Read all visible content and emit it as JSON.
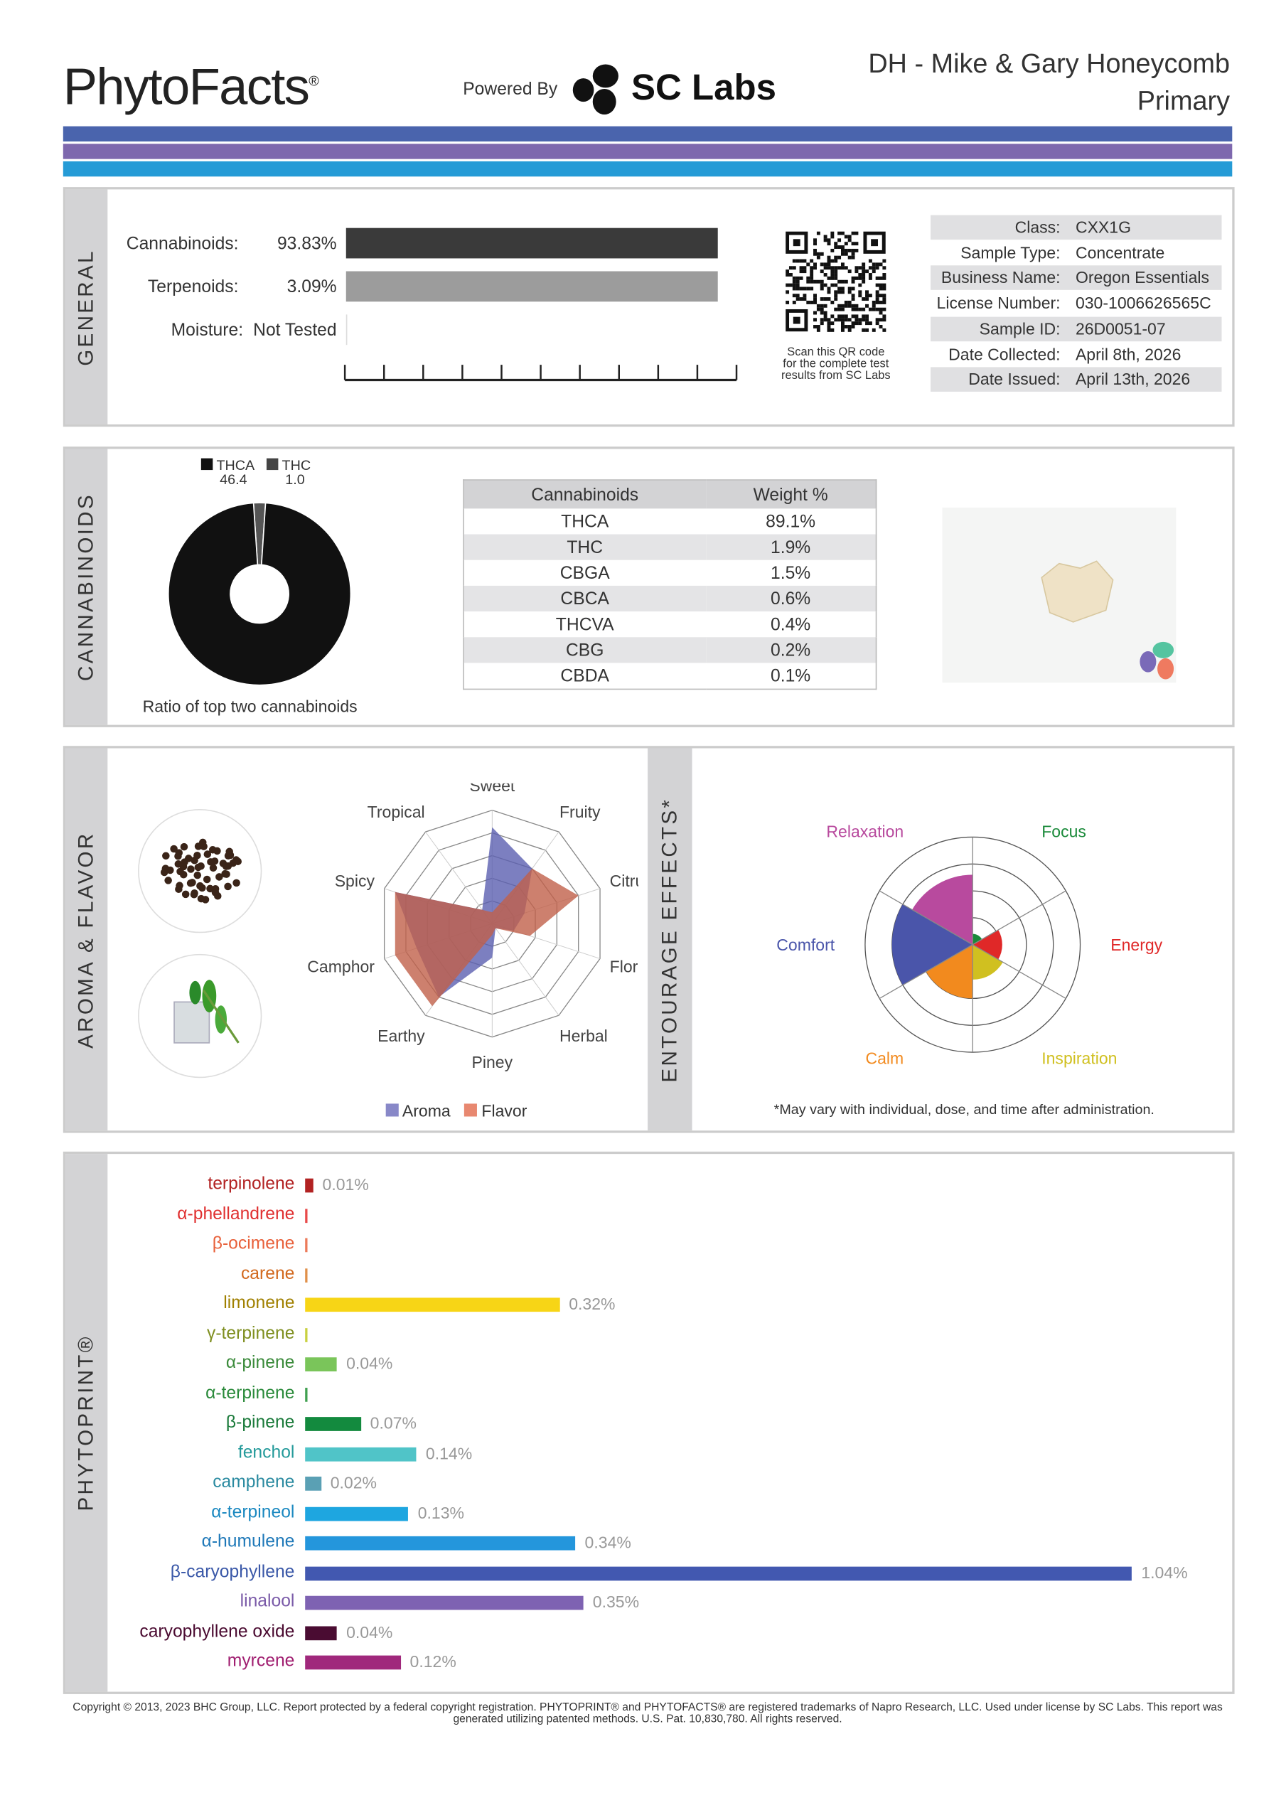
{
  "header": {
    "logo": "PhytoFacts",
    "powered_by": "Powered By",
    "lab_logo": "SC Labs",
    "title_line1": "DH - Mike & Gary Honeycomb",
    "title_line2": "Primary"
  },
  "bands": [
    "#4a64ad",
    "#7e68ae",
    "#259bd6"
  ],
  "general": {
    "section": "GENERAL",
    "cannabinoids_label": "Cannabinoids:",
    "cannabinoids_value": "93.83%",
    "cannabinoids_fraction": 0.9383,
    "terpenoids_label": "Terpenoids:",
    "terpenoids_value": "3.09%",
    "moisture_label": "Moisture:",
    "moisture_value": "Not Tested",
    "qr_caption": [
      "Scan this QR code",
      "for the complete test",
      "results from SC Labs"
    ],
    "info": [
      {
        "k": "Class:",
        "v": "CXX1G"
      },
      {
        "k": "Sample Type:",
        "v": "Concentrate"
      },
      {
        "k": "Business Name:",
        "v": "Oregon Essentials"
      },
      {
        "k": "License Number:",
        "v": "030-1006626565C"
      },
      {
        "k": "Sample ID:",
        "v": "26D0051-07"
      },
      {
        "k": "Date Collected:",
        "v": "April 8th, 2026"
      },
      {
        "k": "Date Issued:",
        "v": "April 13th, 2026"
      }
    ]
  },
  "cannabinoids": {
    "section": "CANNABINOIDS",
    "donut": {
      "caption": "Ratio of top two cannabinoids",
      "legend": [
        {
          "name": "THCA",
          "value": "46.4",
          "color": "#111111"
        },
        {
          "name": "THC",
          "value": "1.0",
          "color": "#444444"
        }
      ]
    },
    "table": {
      "headers": [
        "Cannabinoids",
        "Weight %"
      ],
      "rows": [
        [
          "THCA",
          "89.1%"
        ],
        [
          "THC",
          "1.9%"
        ],
        [
          "CBGA",
          "1.5%"
        ],
        [
          "CBCA",
          "0.6%"
        ],
        [
          "THCVA",
          "0.4%"
        ],
        [
          "CBG",
          "0.2%"
        ],
        [
          "CBDA",
          "0.1%"
        ]
      ]
    }
  },
  "aroma": {
    "section": "AROMA & FLAVOR",
    "axes": [
      "Sweet",
      "Fruity",
      "Citrusy",
      "Floral",
      "Herbal",
      "Piney",
      "Earthy",
      "Camphor",
      "Spicy",
      "Tropical"
    ],
    "series": [
      {
        "name": "Aroma",
        "color": "#5b5fb0",
        "values": [
          0.85,
          0.6,
          0.3,
          0.2,
          0.05,
          0.3,
          0.8,
          0.7,
          0.9,
          0.15
        ]
      },
      {
        "name": "Flavor",
        "color": "#c0604a",
        "values": [
          0.1,
          0.6,
          0.8,
          0.35,
          0.05,
          0.1,
          0.9,
          0.9,
          0.9,
          0.15
        ]
      }
    ]
  },
  "entourage": {
    "section": "ENTOURAGE EFFECTS*",
    "note": "*May vary with individual, dose, and time after administration.",
    "effects": [
      {
        "name": "Focus",
        "color": "#1a8a3a",
        "value": 0.4
      },
      {
        "name": "Energy",
        "color": "#e02828",
        "value": 1.1
      },
      {
        "name": "Inspiration",
        "color": "#d0c020",
        "value": 1.3
      },
      {
        "name": "Calm",
        "color": "#f28a1e",
        "value": 2.0
      },
      {
        "name": "Comfort",
        "color": "#4a55aa",
        "value": 3.0
      },
      {
        "name": "Relaxation",
        "color": "#b84a9e",
        "value": 2.6
      }
    ]
  },
  "phytoprint": {
    "section": "PHYTOPRINT®",
    "terpenes": [
      {
        "name": "terpinolene",
        "value": "0.01%",
        "pct": 0.01,
        "color": "#b22222",
        "bar": "#b22222"
      },
      {
        "name": "α-phellandrene",
        "value": "",
        "pct": 0.002,
        "color": "#e03030",
        "bar": "#e84a4a"
      },
      {
        "name": "β-ocimene",
        "value": "",
        "pct": 0.002,
        "color": "#e8603a",
        "bar": "#ec7a5a"
      },
      {
        "name": "carene",
        "value": "",
        "pct": 0.002,
        "color": "#d2691e",
        "bar": "#e0904a"
      },
      {
        "name": "limonene",
        "value": "0.32%",
        "pct": 0.32,
        "color": "#a08000",
        "bar": "#f7d516"
      },
      {
        "name": "γ-terpinene",
        "value": "",
        "pct": 0.002,
        "color": "#7f8f20",
        "bar": "#c8d040"
      },
      {
        "name": "α-pinene",
        "value": "0.04%",
        "pct": 0.04,
        "color": "#3a8a3a",
        "bar": "#7ac55a"
      },
      {
        "name": "α-terpinene",
        "value": "",
        "pct": 0.002,
        "color": "#2a8a3a",
        "bar": "#40a050"
      },
      {
        "name": "β-pinene",
        "value": "0.07%",
        "pct": 0.07,
        "color": "#1a7a3a",
        "bar": "#138a3e"
      },
      {
        "name": "fenchol",
        "value": "0.14%",
        "pct": 0.14,
        "color": "#239a9a",
        "bar": "#50c4c8"
      },
      {
        "name": "camphene",
        "value": "0.02%",
        "pct": 0.02,
        "color": "#2a8aa0",
        "bar": "#5aa0b4"
      },
      {
        "name": "α-terpineol",
        "value": "0.13%",
        "pct": 0.13,
        "color": "#1a88c0",
        "bar": "#1ea6e0"
      },
      {
        "name": "α-humulene",
        "value": "0.34%",
        "pct": 0.34,
        "color": "#1e78b8",
        "bar": "#2496dc"
      },
      {
        "name": "β-caryophyllene",
        "value": "1.04%",
        "pct": 1.04,
        "color": "#3a58a8",
        "bar": "#4258b0"
      },
      {
        "name": "linalool",
        "value": "0.35%",
        "pct": 0.35,
        "color": "#7a5aa8",
        "bar": "#7e62b2"
      },
      {
        "name": "caryophyllene oxide",
        "value": "0.04%",
        "pct": 0.04,
        "color": "#4a0a30",
        "bar": "#4a0c32"
      },
      {
        "name": "myrcene",
        "value": "0.12%",
        "pct": 0.12,
        "color": "#a01e70",
        "bar": "#a0287c"
      }
    ]
  },
  "footer": {
    "copyright": "Copyright © 2013, 2023 BHC Group, LLC. Report protected by a federal copyright registration. PHYTOPRINT® and PHYTOFACTS® are registered trademarks of Napro Research, LLC. Used under license by SC Labs. This report was generated utilizing patented methods. U.S. Pat. 10,830,780. All rights reserved."
  }
}
